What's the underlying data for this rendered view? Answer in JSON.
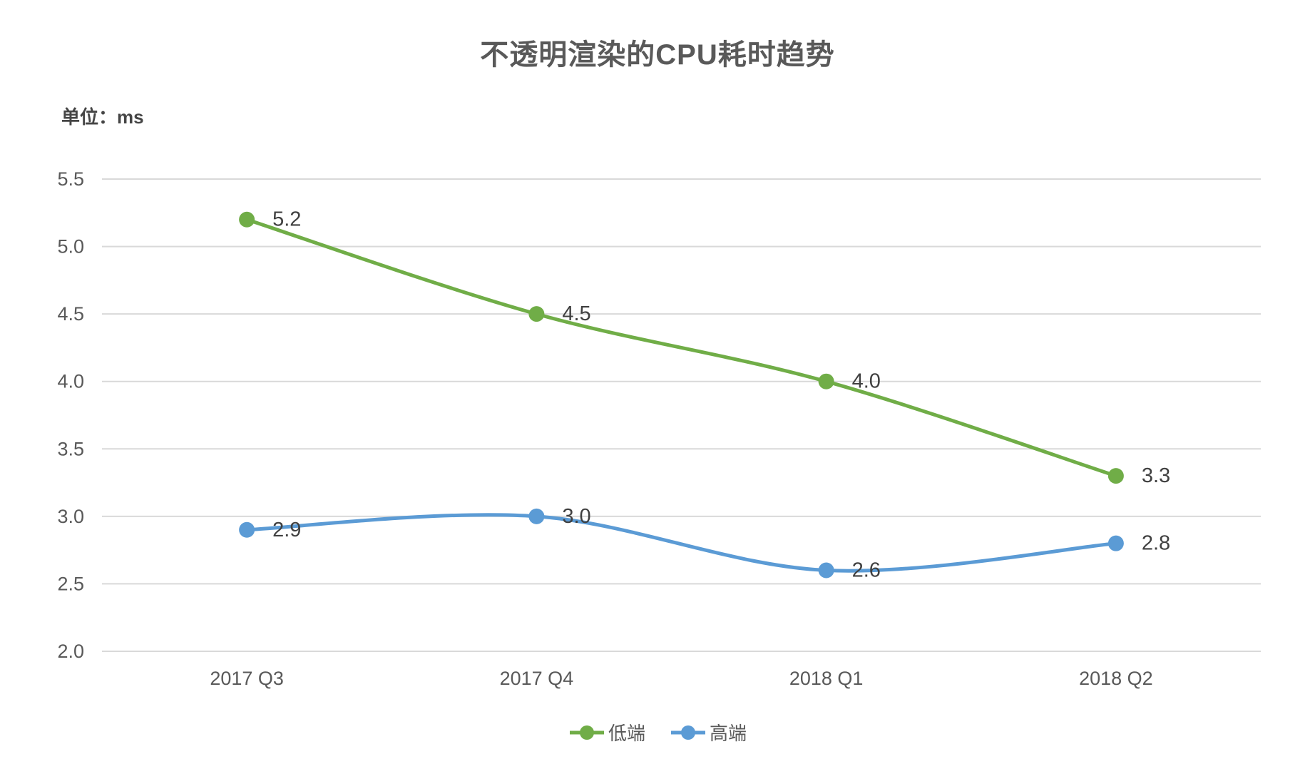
{
  "header": {
    "title": "不透明渲染的CPU耗时趋势",
    "unit_label": "单位：ms"
  },
  "chart_data": {
    "type": "line",
    "title": "不透明渲染的CPU耗时趋势",
    "unit": "ms",
    "categories": [
      "2017 Q3",
      "2017 Q4",
      "2018 Q1",
      "2018 Q2"
    ],
    "series": [
      {
        "name": "低端",
        "color": "#70AD47",
        "values": [
          5.2,
          4.5,
          4.0,
          3.3
        ],
        "labels": [
          "5.2",
          "4.5",
          "4.0",
          "3.3"
        ]
      },
      {
        "name": "高端",
        "color": "#5B9BD5",
        "values": [
          2.9,
          3.0,
          2.6,
          2.8
        ],
        "labels": [
          "2.9",
          "3.0",
          "2.6",
          "2.8"
        ]
      }
    ],
    "ylim": [
      2.0,
      5.5
    ],
    "ytick_step": 0.5,
    "yticks": [
      "5.5",
      "5.0",
      "4.5",
      "4.0",
      "3.5",
      "3.0",
      "2.5",
      "2.0"
    ],
    "grid": "horizontal-only",
    "smooth_lines": true,
    "data_labels": "right-of-point",
    "legend_position": "bottom-center",
    "colors": {
      "gridline": "#D9D9D9",
      "axis_tick_label": "#595959",
      "x_axis_label": "#595959",
      "data_label": "#404040",
      "background": "#ffffff"
    }
  }
}
